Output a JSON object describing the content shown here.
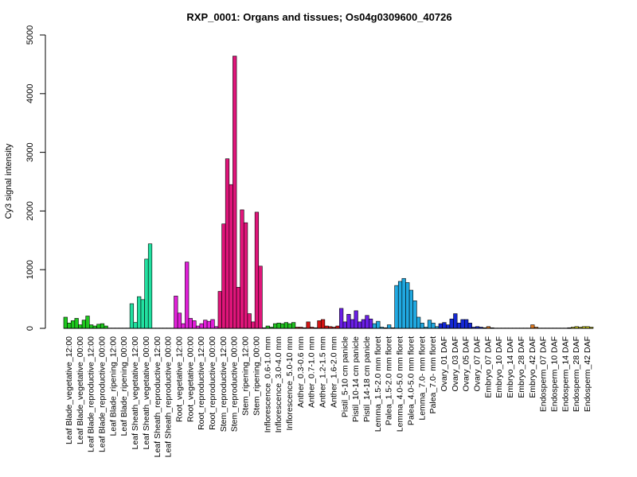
{
  "chart_data": {
    "type": "bar",
    "title": "RXP_0001: Organs and tissues; Os04g0309600_40726",
    "xlabel": "",
    "ylabel": "Cy3 signal intensity",
    "ylim": [
      0,
      5000
    ],
    "yticks": [
      0,
      1000,
      2000,
      3000,
      4000,
      5000
    ],
    "grid": false,
    "legend": "none",
    "categories": [
      "Leaf Blade_vegetative_12:00",
      "Leaf Blade_vegetative_00:00",
      "Leaf Blade_reproductive_12:00",
      "Leaf Blade_reproductive_00:00",
      "Leaf Blade_ripening_12:00",
      "Leaf Blade_ripening_00:00",
      "Leaf Sheath_vegetative_12:00",
      "Leaf Sheath_vegetative_00:00",
      "Leaf Sheath_reproductive_12:00",
      "Leaf Sheath_reproductive_00:00",
      "Root_vegetative_12:00",
      "Root_vegetative_00:00",
      "Root_reproductive_12:00",
      "Root_reproductive_00:00",
      "Stem_reproductive_12:00",
      "Stem_reproductive_00:00",
      "Stem_ripening_12:00",
      "Stem_ripening_00:00",
      "Inflorescence_0.6-1.0 mm",
      "Inflorescence_3.0-4.0 mm",
      "Inflorescence_5.0-10 mm",
      "Anther_0.3-0.6 mm",
      "Anther_0.7-1.0 mm",
      "Anther_1.2-1.5 mm",
      "Anther_1.6-2.0 mm",
      "Pistil_5-10 cm panicle",
      "Pistil_10-14 cm panicle",
      "Pistil_14-18 cm panicle",
      "Lemma_1.5-2.0 mm floret",
      "Palea_1.5-2.0 mm floret",
      "Lemma_4.0-5.0 mm floret",
      "Palea_4.0-5.0 mm floret",
      "Lemma_7.0- mm floret",
      "Palea_7.0- mm floret",
      "Ovary_01 DAF",
      "Ovary_03 DAF",
      "Ovary_05 DAF",
      "Ovary_07 DAF",
      "Embryo_07 DAF",
      "Embryo_10 DAF",
      "Embryo_14 DAF",
      "Embryo_28 DAF",
      "Embryo_42 DAF",
      "Endosperm_07 DAF",
      "Endosperm_10 DAF",
      "Endosperm_14 DAF",
      "Endosperm_28 DAF",
      "Endosperm_42 DAF"
    ],
    "colors": [
      "#1ec81e",
      "#1ec81e",
      "#1ec81e",
      "#1ec81e",
      "#1ec81e",
      "#1ec81e",
      "#22e0a0",
      "#22e0a0",
      "#22e0a0",
      "#22e0a0",
      "#e020d8",
      "#e020d8",
      "#e020d8",
      "#e020d8",
      "#e0157a",
      "#e0157a",
      "#e0157a",
      "#e0157a",
      "#20c020",
      "#20c020",
      "#20c020",
      "#d41414",
      "#d41414",
      "#d41414",
      "#d41414",
      "#6a1ee6",
      "#6a1ee6",
      "#6a1ee6",
      "#20a8e0",
      "#20a8e0",
      "#20a8e0",
      "#20a8e0",
      "#20a8e0",
      "#20a8e0",
      "#1428d4",
      "#1428d4",
      "#1428d4",
      "#1428d4",
      "#e07820",
      "#e07820",
      "#e07820",
      "#e07820",
      "#e07820",
      "#c8c820",
      "#c8c820",
      "#c8c820",
      "#c8c820",
      "#c8c820"
    ],
    "values": [
      [
        190,
        90,
        130
      ],
      [
        170,
        60,
        140
      ],
      [
        210,
        60,
        40
      ],
      [
        70,
        80,
        40
      ],
      [
        5,
        5,
        5
      ],
      [
        5,
        5,
        5
      ],
      [
        420,
        100,
        540
      ],
      [
        490,
        1180,
        1440
      ],
      [
        5,
        5,
        5
      ],
      [
        5,
        5,
        5
      ],
      [
        550,
        260,
        80
      ],
      [
        1130,
        170,
        130
      ],
      [
        40,
        80,
        140
      ],
      [
        120,
        150,
        30
      ],
      [
        630,
        1780,
        2890
      ],
      [
        2450,
        4640,
        700
      ],
      [
        2020,
        1800,
        250
      ],
      [
        110,
        1980,
        1060
      ],
      [
        10,
        40,
        20
      ],
      [
        80,
        90,
        80
      ],
      [
        100,
        80,
        100
      ],
      [
        20,
        20,
        10
      ],
      [
        110,
        20,
        10
      ],
      [
        130,
        150,
        40
      ],
      [
        30,
        20,
        40
      ],
      [
        340,
        110,
        240
      ],
      [
        150,
        300,
        110
      ],
      [
        150,
        220,
        160
      ],
      [
        80,
        120,
        20
      ],
      [
        10,
        60,
        10
      ],
      [
        730,
        800,
        850
      ],
      [
        780,
        650,
        470
      ],
      [
        190,
        90,
        20
      ],
      [
        140,
        90,
        30
      ],
      [
        80,
        100,
        60
      ],
      [
        160,
        250,
        90
      ],
      [
        150,
        150,
        90
      ],
      [
        20,
        30,
        20
      ],
      [
        10,
        30,
        10
      ],
      [
        5,
        5,
        5
      ],
      [
        5,
        5,
        5
      ],
      [
        5,
        5,
        5
      ],
      [
        5,
        60,
        20
      ],
      [
        5,
        5,
        5
      ],
      [
        5,
        5,
        5
      ],
      [
        5,
        5,
        10
      ],
      [
        20,
        30,
        20
      ],
      [
        30,
        30,
        20
      ]
    ]
  }
}
